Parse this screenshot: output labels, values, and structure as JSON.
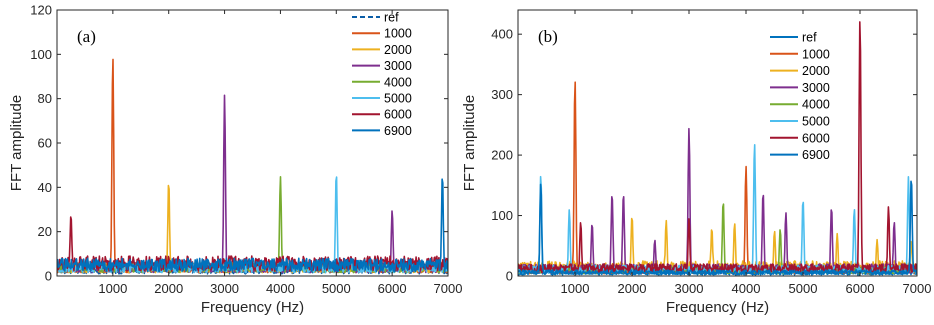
{
  "chart_data": [
    {
      "type": "line",
      "panel_label": "(a)",
      "xlabel": "Frequency (Hz)",
      "ylabel": "FFT amplitude",
      "xlim": [
        0,
        7000
      ],
      "ylim": [
        0,
        120
      ],
      "xticks": [
        1000,
        2000,
        3000,
        4000,
        5000,
        6000,
        7000
      ],
      "yticks": [
        0,
        20,
        40,
        60,
        80,
        100,
        120
      ],
      "legend_position": "top-right",
      "series": [
        {
          "name": "ref",
          "color": "#0b5ea8",
          "dashed": true,
          "noise": 4,
          "peaks": []
        },
        {
          "name": "1000",
          "color": "#d95319",
          "dashed": false,
          "noise": 6,
          "peaks": [
            [
              1000,
              100
            ]
          ]
        },
        {
          "name": "2000",
          "color": "#edb120",
          "dashed": false,
          "noise": 6,
          "peaks": [
            [
              2000,
              43
            ]
          ]
        },
        {
          "name": "3000",
          "color": "#7e2f8e",
          "dashed": false,
          "noise": 6,
          "peaks": [
            [
              3000,
              82
            ],
            [
              6000,
              30
            ]
          ]
        },
        {
          "name": "4000",
          "color": "#77ac30",
          "dashed": false,
          "noise": 6,
          "peaks": [
            [
              4000,
              45
            ]
          ]
        },
        {
          "name": "5000",
          "color": "#4dbeee",
          "dashed": false,
          "noise": 6,
          "peaks": [
            [
              5000,
              47
            ]
          ]
        },
        {
          "name": "6000",
          "color": "#a2142f",
          "dashed": false,
          "noise": 9,
          "peaks": [
            [
              250,
              28
            ]
          ]
        },
        {
          "name": "6900",
          "color": "#0072bd",
          "dashed": false,
          "noise": 8,
          "peaks": [
            [
              6900,
              46
            ]
          ]
        }
      ]
    },
    {
      "type": "line",
      "panel_label": "(b)",
      "xlabel": "Frequency (Hz)",
      "ylabel": "FFT amplitude",
      "xlim": [
        0,
        7000
      ],
      "ylim": [
        0,
        440
      ],
      "xticks": [
        1000,
        2000,
        3000,
        4000,
        5000,
        6000,
        7000
      ],
      "yticks": [
        0,
        100,
        200,
        300,
        400
      ],
      "legend_position": "top-right",
      "series": [
        {
          "name": "ref",
          "color": "#0072bd",
          "dashed": false,
          "noise": 8,
          "peaks": []
        },
        {
          "name": "1000",
          "color": "#d95319",
          "dashed": false,
          "noise": 15,
          "peaks": [
            [
              1000,
              328
            ],
            [
              4000,
              182
            ]
          ]
        },
        {
          "name": "2000",
          "color": "#edb120",
          "dashed": false,
          "noise": 25,
          "peaks": [
            [
              2000,
              100
            ],
            [
              2600,
              92
            ],
            [
              3400,
              80
            ],
            [
              3800,
              88
            ],
            [
              4500,
              75
            ],
            [
              5600,
              70
            ],
            [
              6300,
              60
            ],
            [
              6900,
              60
            ]
          ]
        },
        {
          "name": "3000",
          "color": "#7e2f8e",
          "dashed": false,
          "noise": 20,
          "peaks": [
            [
              1300,
              88
            ],
            [
              1650,
              138
            ],
            [
              1850,
              138
            ],
            [
              2400,
              60
            ],
            [
              3000,
              245
            ],
            [
              4300,
              140
            ],
            [
              4700,
              105
            ],
            [
              5500,
              115
            ],
            [
              6600,
              90
            ]
          ]
        },
        {
          "name": "4000",
          "color": "#77ac30",
          "dashed": false,
          "noise": 15,
          "peaks": [
            [
              3600,
              125
            ],
            [
              4600,
              78
            ]
          ]
        },
        {
          "name": "5000",
          "color": "#4dbeee",
          "dashed": false,
          "noise": 18,
          "peaks": [
            [
              400,
              168
            ],
            [
              900,
              110
            ],
            [
              4150,
              222
            ],
            [
              5000,
              128
            ],
            [
              5900,
              112
            ],
            [
              6850,
              165
            ]
          ]
        },
        {
          "name": "6000",
          "color": "#a2142f",
          "dashed": false,
          "noise": 20,
          "peaks": [
            [
              6000,
              430
            ],
            [
              6500,
              115
            ],
            [
              1100,
              90
            ],
            [
              3000,
              95
            ]
          ]
        },
        {
          "name": "6900",
          "color": "#0072bd",
          "dashed": false,
          "noise": 10,
          "peaks": [
            [
              6900,
              165
            ],
            [
              400,
              155
            ]
          ]
        }
      ]
    }
  ]
}
